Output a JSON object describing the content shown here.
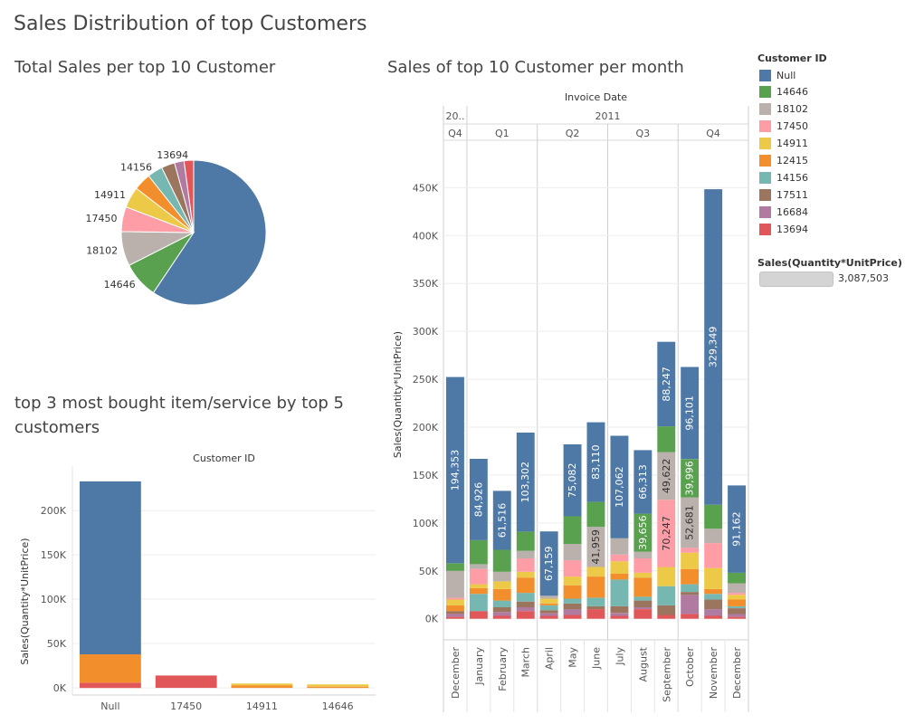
{
  "dashboard": {
    "title": "Sales Distribution of top Customers",
    "pie_title": "Total Sales per top 10 Customer",
    "month_title": "Sales of top 10 Customer per month",
    "items_title_line1": "top 3 most bought item/service by top 5",
    "items_title_line2": "customers"
  },
  "legend": {
    "title": "Customer ID",
    "items": [
      {
        "label": "Null",
        "color": "#4e79a7"
      },
      {
        "label": "14646",
        "color": "#59a14f"
      },
      {
        "label": "18102",
        "color": "#bab0ac"
      },
      {
        "label": "17450",
        "color": "#ff9da7"
      },
      {
        "label": "14911",
        "color": "#edc948"
      },
      {
        "label": "12415",
        "color": "#f28e2b"
      },
      {
        "label": "14156",
        "color": "#76b7b2"
      },
      {
        "label": "17511",
        "color": "#9c755f"
      },
      {
        "label": "16684",
        "color": "#b07aa1"
      },
      {
        "label": "13694",
        "color": "#e15759"
      }
    ],
    "size_title": "Sales(Quantity*UnitPrice)",
    "size_value": "3,087,503"
  },
  "chart_data": [
    {
      "type": "pie",
      "title": "Total Sales per top 10 Customer",
      "slices": [
        {
          "label": "",
          "value": 1390000,
          "color": "#4e79a7"
        },
        {
          "label": "14646",
          "value": 190000,
          "color": "#59a14f"
        },
        {
          "label": "18102",
          "value": 180000,
          "color": "#bab0ac"
        },
        {
          "label": "17450",
          "value": 130000,
          "color": "#ff9da7"
        },
        {
          "label": "14911",
          "value": 110000,
          "color": "#edc948"
        },
        {
          "label": "",
          "value": 90000,
          "color": "#f28e2b"
        },
        {
          "label": "14156",
          "value": 80000,
          "color": "#76b7b2"
        },
        {
          "label": "",
          "value": 70000,
          "color": "#9c755f"
        },
        {
          "label": "",
          "value": 50000,
          "color": "#b07aa1"
        },
        {
          "label": "13694",
          "value": 50000,
          "color": "#e15759"
        }
      ]
    },
    {
      "type": "bar",
      "stacked": true,
      "title": "Sales of top 10 Customer per month",
      "header_title": "Invoice Date",
      "years": [
        {
          "label": "20..",
          "from": 0,
          "to": 1
        },
        {
          "label": "2011",
          "from": 1,
          "to": 13
        }
      ],
      "quarters": [
        {
          "label": "Q4",
          "from": 0,
          "to": 1
        },
        {
          "label": "Q1",
          "from": 1,
          "to": 4
        },
        {
          "label": "Q2",
          "from": 4,
          "to": 7
        },
        {
          "label": "Q3",
          "from": 7,
          "to": 10
        },
        {
          "label": "Q4",
          "from": 10,
          "to": 13
        }
      ],
      "categories": [
        "December",
        "January",
        "February",
        "March",
        "April",
        "May",
        "June",
        "July",
        "August",
        "September",
        "October",
        "November",
        "December"
      ],
      "ylabel": "Sales(Quantity*UnitPrice)",
      "ylim": [
        -22000,
        490000
      ],
      "yticks": [
        0,
        50000,
        100000,
        150000,
        200000,
        250000,
        300000,
        350000,
        400000,
        450000
      ],
      "ytick_labels": [
        "0K",
        "50K",
        "100K",
        "150K",
        "200K",
        "250K",
        "300K",
        "350K",
        "400K",
        "450K"
      ],
      "series": [
        {
          "name": "13694",
          "color": "#e15759",
          "values": [
            2000,
            8000,
            3000,
            8000,
            3000,
            4000,
            10000,
            3000,
            10000,
            4000,
            5000,
            3000,
            2000
          ]
        },
        {
          "name": "16684",
          "color": "#b07aa1",
          "values": [
            3000,
            0,
            4000,
            4000,
            3000,
            6000,
            0,
            3000,
            2000,
            0,
            20000,
            7000,
            3000
          ]
        },
        {
          "name": "17511",
          "color": "#9c755f",
          "values": [
            3000,
            0,
            5000,
            6000,
            3000,
            6000,
            3000,
            7000,
            7000,
            10000,
            3000,
            10000,
            6000
          ]
        },
        {
          "name": "14156",
          "color": "#76b7b2",
          "values": [
            0,
            18000,
            7000,
            9000,
            5000,
            5000,
            9000,
            28000,
            4000,
            20000,
            8000,
            6000,
            2000
          ]
        },
        {
          "name": "12415",
          "color": "#f28e2b",
          "values": [
            6000,
            6000,
            12000,
            16000,
            2000,
            14000,
            22000,
            6000,
            20000,
            0,
            16000,
            5000,
            7000
          ]
        },
        {
          "name": "14911",
          "color": "#edc948",
          "values": [
            6000,
            4000,
            8000,
            6000,
            5000,
            9000,
            10000,
            13000,
            5000,
            20000,
            17000,
            22000,
            5000
          ]
        },
        {
          "name": "17450",
          "color": "#ff9da7",
          "values": [
            2000,
            16000,
            0,
            14000,
            0,
            17000,
            0,
            7000,
            15000,
            70247,
            5000,
            26000,
            2000
          ]
        },
        {
          "name": "18102",
          "color": "#bab0ac",
          "values": [
            28000,
            5000,
            10000,
            8000,
            3000,
            17000,
            41959,
            17000,
            7000,
            49622,
            52681,
            15000,
            10000
          ]
        },
        {
          "name": "14646",
          "color": "#59a14f",
          "values": [
            8000,
            25000,
            23000,
            20000,
            0,
            29000,
            26000,
            0,
            39656,
            27000,
            39996,
            25000,
            11000
          ]
        },
        {
          "name": "Null",
          "color": "#4e79a7",
          "values": [
            194353,
            84926,
            61516,
            103302,
            67159,
            75082,
            83110,
            107062,
            66313,
            88247,
            96101,
            329349,
            91162
          ]
        }
      ],
      "data_labels": [
        {
          "category": 0,
          "series": "Null",
          "text": "194,353"
        },
        {
          "category": 1,
          "series": "Null",
          "text": "84,926"
        },
        {
          "category": 2,
          "series": "Null",
          "text": "61,516"
        },
        {
          "category": 3,
          "series": "Null",
          "text": "103,302"
        },
        {
          "category": 4,
          "series": "Null",
          "text": "67,159"
        },
        {
          "category": 5,
          "series": "Null",
          "text": "75,082"
        },
        {
          "category": 6,
          "series": "Null",
          "text": "83,110"
        },
        {
          "category": 6,
          "series": "18102",
          "text": "41,959"
        },
        {
          "category": 7,
          "series": "Null",
          "text": "107,062"
        },
        {
          "category": 8,
          "series": "Null",
          "text": "66,313"
        },
        {
          "category": 8,
          "series": "14646",
          "text": "39,656"
        },
        {
          "category": 9,
          "series": "Null",
          "text": "88,247"
        },
        {
          "category": 9,
          "series": "18102",
          "text": "49,622"
        },
        {
          "category": 9,
          "series": "17450",
          "text": "70,247"
        },
        {
          "category": 10,
          "series": "Null",
          "text": "96,101"
        },
        {
          "category": 10,
          "series": "14646",
          "text": "39,996"
        },
        {
          "category": 10,
          "series": "18102",
          "text": "52,681"
        },
        {
          "category": 11,
          "series": "Null",
          "text": "329,349"
        },
        {
          "category": 12,
          "series": "Null",
          "text": "91,162"
        }
      ]
    },
    {
      "type": "bar",
      "stacked": true,
      "title": "top 3 most bought item/service by top 5 customers",
      "header_title": "Customer ID",
      "categories": [
        "Null",
        "17450",
        "14911",
        "14646"
      ],
      "ylabel": "Sales(Quantity*UnitPrice)",
      "ylim": [
        -8000,
        240000
      ],
      "yticks": [
        0,
        50000,
        100000,
        150000,
        200000
      ],
      "ytick_labels": [
        "0K",
        "50K",
        "100K",
        "150K",
        "200K"
      ],
      "series": [
        {
          "color": "#e15759",
          "values": [
            6000,
            14000,
            0,
            0
          ]
        },
        {
          "color": "#f28e2b",
          "values": [
            32000,
            0,
            3000,
            1500
          ]
        },
        {
          "color": "#edc948",
          "values": [
            0,
            0,
            2000,
            2500
          ]
        },
        {
          "color": "#4e79a7",
          "values": [
            195000,
            0,
            0,
            0
          ]
        }
      ]
    }
  ]
}
